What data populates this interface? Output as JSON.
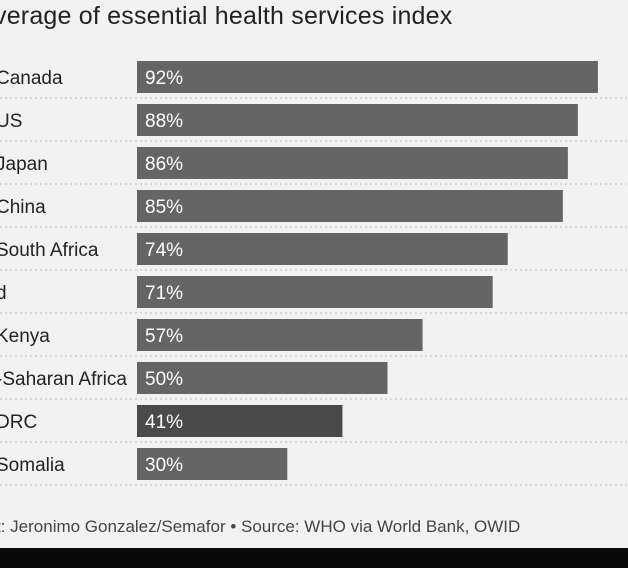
{
  "title": "verage of essential health services index",
  "footer": "t: Jeronimo Gonzalez/Semafor • Source: WHO via World Bank, OWID",
  "chart_data": {
    "type": "bar",
    "orientation": "horizontal",
    "title": "verage of essential health services index",
    "categories": [
      "Canada",
      "US",
      "Japan",
      "China",
      "South Africa",
      "d",
      "Kenya",
      "-Saharan Africa",
      "DRC",
      "Somalia"
    ],
    "values": [
      92,
      88,
      86,
      85,
      74,
      71,
      57,
      50,
      41,
      30
    ],
    "value_labels": [
      "92%",
      "88%",
      "86%",
      "85%",
      "74%",
      "71%",
      "57%",
      "50%",
      "41%",
      "30%"
    ],
    "xlim": [
      0,
      100
    ],
    "grid": true,
    "colors": {
      "bar": "#656565",
      "bar_highlight": "#4a4a4a",
      "label_text": "#ffffff",
      "category_text": "#222222",
      "grid": "#bdbdbd"
    },
    "highlight_index": 8
  }
}
